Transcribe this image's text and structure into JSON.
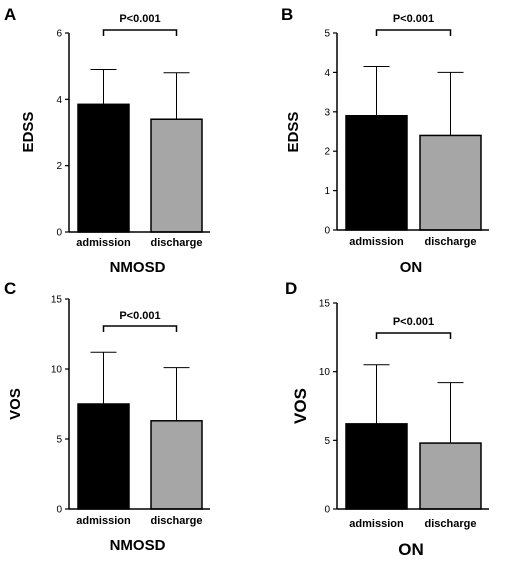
{
  "colors": {
    "admission": "#000000",
    "discharge": "#a6a6a6",
    "axis": "#000000",
    "errorbar": "#000000"
  },
  "chart_data": [
    {
      "panel": "A",
      "type": "bar",
      "ylabel": "EDSS",
      "xlabel": "NMOSD",
      "categories": [
        "admission",
        "discharge"
      ],
      "values": [
        3.85,
        3.4
      ],
      "errors": [
        1.05,
        1.4
      ],
      "ylim": [
        0,
        6
      ],
      "yticks": [
        "0",
        "2",
        "4",
        "6"
      ],
      "ytick_values": [
        0,
        2,
        4,
        6
      ],
      "annotation": "P<0.001",
      "grid": false,
      "legend": "none"
    },
    {
      "panel": "B",
      "type": "bar",
      "ylabel": "EDSS",
      "xlabel": "ON",
      "categories": [
        "admission",
        "discharge"
      ],
      "values": [
        2.9,
        2.4
      ],
      "errors": [
        1.25,
        1.6
      ],
      "ylim": [
        0,
        5
      ],
      "yticks": [
        "0",
        "1",
        "2",
        "3",
        "4",
        "5"
      ],
      "ytick_values": [
        0,
        1,
        2,
        3,
        4,
        5
      ],
      "annotation": "P<0.001",
      "grid": false,
      "legend": "none"
    },
    {
      "panel": "C",
      "type": "bar",
      "ylabel": "VOS",
      "xlabel": "NMOSD",
      "categories": [
        "admission",
        "discharge"
      ],
      "values": [
        7.5,
        6.3
      ],
      "errors": [
        3.7,
        3.8
      ],
      "ylim": [
        0,
        15
      ],
      "yticks": [
        "0",
        "5",
        "10",
        "15"
      ],
      "ytick_values": [
        0,
        5,
        10,
        15
      ],
      "annotation": "P<0.001",
      "grid": false,
      "legend": "none"
    },
    {
      "panel": "D",
      "type": "bar",
      "ylabel": "VOS",
      "xlabel": "ON",
      "categories": [
        "admission",
        "discharge"
      ],
      "values": [
        6.2,
        4.8
      ],
      "errors": [
        4.3,
        4.4
      ],
      "ylim": [
        0,
        15
      ],
      "yticks": [
        "0",
        "5",
        "10",
        "15"
      ],
      "ytick_values": [
        0,
        5,
        10,
        15
      ],
      "annotation": "P<0.001",
      "grid": false,
      "legend": "none"
    }
  ]
}
